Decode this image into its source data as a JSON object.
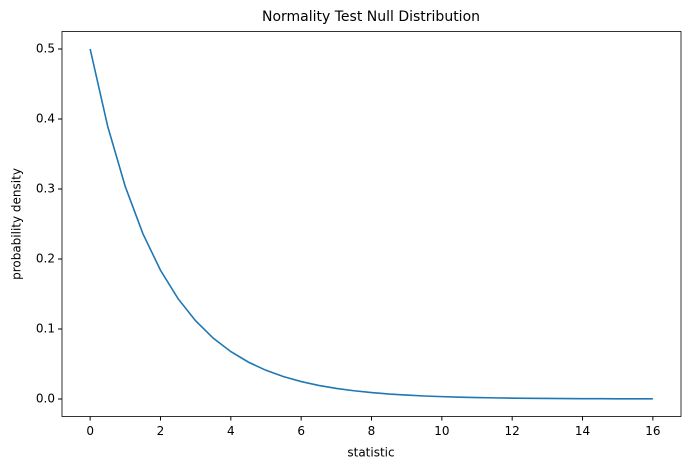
{
  "chart_data": {
    "type": "line",
    "title": "Normality Test Null Distribution",
    "xlabel": "statistic",
    "ylabel": "probability density",
    "x": [
      0,
      0.5,
      1,
      1.5,
      2,
      2.5,
      3,
      3.5,
      4,
      4.5,
      5,
      5.5,
      6,
      6.5,
      7,
      7.5,
      8,
      8.5,
      9,
      9.5,
      10,
      10.5,
      11,
      11.5,
      12,
      12.5,
      13,
      13.5,
      14,
      14.5,
      15,
      15.5,
      16
    ],
    "series": [
      {
        "color": "#1f77b4",
        "values": [
          0.5,
          0.3894,
          0.3033,
          0.2362,
          0.1839,
          0.1433,
          0.1116,
          0.0869,
          0.0677,
          0.0527,
          0.041,
          0.032,
          0.0249,
          0.0194,
          0.0151,
          0.0118,
          0.0092,
          0.0071,
          0.0056,
          0.0043,
          0.0034,
          0.0026,
          0.002,
          0.0016,
          0.0012,
          0.001,
          0.0008,
          0.0006,
          0.0005,
          0.0004,
          0.0003,
          0.0002,
          0.0002
        ]
      }
    ],
    "xlim": [
      -0.8,
      16.8
    ],
    "ylim": [
      -0.025,
      0.525
    ],
    "xticks": [
      0,
      2,
      4,
      6,
      8,
      10,
      12,
      14,
      16
    ],
    "yticks": [
      {
        "value": 0,
        "label": "0.0"
      },
      0.1,
      0.2,
      0.3,
      0.4,
      0.5
    ],
    "grid": false
  }
}
